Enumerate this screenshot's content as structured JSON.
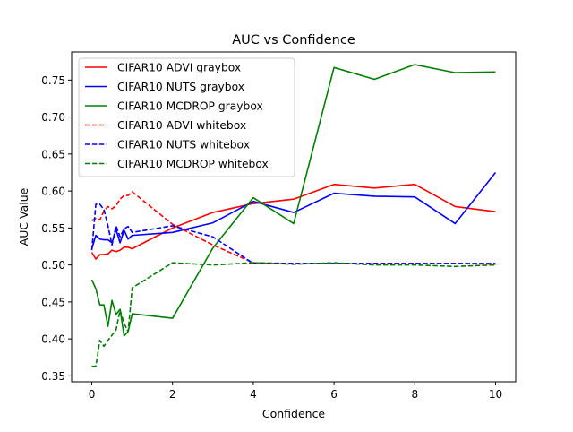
{
  "chart_data": {
    "type": "line",
    "title": "AUC vs Confidence",
    "xlabel": "Confidence",
    "ylabel": "AUC Value",
    "xlim": [
      -0.5,
      10.5
    ],
    "ylim": [
      0.342,
      0.788
    ],
    "xticks": [
      0,
      2,
      4,
      6,
      8,
      10
    ],
    "xtick_labels": [
      "0",
      "2",
      "4",
      "6",
      "8",
      "10"
    ],
    "yticks": [
      0.35,
      0.4,
      0.45,
      0.5,
      0.55,
      0.6,
      0.65,
      0.7,
      0.75
    ],
    "ytick_labels": [
      "0.35",
      "0.40",
      "0.45",
      "0.50",
      "0.55",
      "0.60",
      "0.65",
      "0.70",
      "0.75"
    ],
    "grid": false,
    "legend_position": "top-left",
    "series": [
      {
        "name": "CIFAR10 ADVI graybox",
        "color": "#ff0000",
        "dash": "solid",
        "points": [
          [
            0,
            0.517
          ],
          [
            0.1,
            0.508
          ],
          [
            0.2,
            0.514
          ],
          [
            0.3,
            0.514
          ],
          [
            0.4,
            0.515
          ],
          [
            0.5,
            0.52
          ],
          [
            0.6,
            0.518
          ],
          [
            0.7,
            0.52
          ],
          [
            0.8,
            0.524
          ],
          [
            0.9,
            0.524
          ],
          [
            1,
            0.522
          ],
          [
            2,
            0.55
          ],
          [
            3,
            0.571
          ],
          [
            4,
            0.583
          ],
          [
            5,
            0.589
          ],
          [
            6,
            0.609
          ],
          [
            7,
            0.604
          ],
          [
            8,
            0.609
          ],
          [
            9,
            0.579
          ],
          [
            10,
            0.572
          ]
        ]
      },
      {
        "name": "CIFAR10 NUTS graybox",
        "color": "#0000ff",
        "dash": "solid",
        "points": [
          [
            0,
            0.522
          ],
          [
            0.1,
            0.54
          ],
          [
            0.2,
            0.535
          ],
          [
            0.3,
            0.534
          ],
          [
            0.4,
            0.534
          ],
          [
            0.5,
            0.53
          ],
          [
            0.6,
            0.548
          ],
          [
            0.7,
            0.53
          ],
          [
            0.8,
            0.547
          ],
          [
            0.9,
            0.535
          ],
          [
            1,
            0.54
          ],
          [
            2,
            0.544
          ],
          [
            3,
            0.557
          ],
          [
            4,
            0.586
          ],
          [
            5,
            0.571
          ],
          [
            6,
            0.597
          ],
          [
            7,
            0.593
          ],
          [
            8,
            0.592
          ],
          [
            9,
            0.556
          ],
          [
            10,
            0.625
          ]
        ]
      },
      {
        "name": "CIFAR10 MCDROP graybox",
        "color": "#008000",
        "dash": "solid",
        "points": [
          [
            0,
            0.48
          ],
          [
            0.1,
            0.468
          ],
          [
            0.2,
            0.446
          ],
          [
            0.3,
            0.446
          ],
          [
            0.4,
            0.417
          ],
          [
            0.5,
            0.452
          ],
          [
            0.6,
            0.433
          ],
          [
            0.7,
            0.44
          ],
          [
            0.8,
            0.404
          ],
          [
            0.9,
            0.41
          ],
          [
            1,
            0.434
          ],
          [
            2,
            0.428
          ],
          [
            3,
            0.523
          ],
          [
            4,
            0.591
          ],
          [
            5,
            0.556
          ],
          [
            6,
            0.767
          ],
          [
            7,
            0.751
          ],
          [
            8,
            0.771
          ],
          [
            9,
            0.76
          ],
          [
            10,
            0.761
          ]
        ]
      },
      {
        "name": "CIFAR10 ADVI whitebox",
        "color": "#ff0000",
        "dash": "dashed",
        "points": [
          [
            0,
            0.56
          ],
          [
            0.1,
            0.563
          ],
          [
            0.2,
            0.561
          ],
          [
            0.3,
            0.573
          ],
          [
            0.4,
            0.579
          ],
          [
            0.5,
            0.576
          ],
          [
            0.6,
            0.58
          ],
          [
            0.7,
            0.589
          ],
          [
            0.8,
            0.594
          ],
          [
            0.9,
            0.594
          ],
          [
            1,
            0.599
          ],
          [
            2,
            0.555
          ],
          [
            3,
            0.527
          ],
          [
            4,
            0.503
          ],
          [
            5,
            0.502
          ],
          [
            6,
            0.502
          ],
          [
            7,
            0.502
          ],
          [
            8,
            0.502
          ],
          [
            9,
            0.502
          ],
          [
            10,
            0.501
          ]
        ]
      },
      {
        "name": "CIFAR10 NUTS whitebox",
        "color": "#0000ff",
        "dash": "dashed",
        "points": [
          [
            0,
            0.52
          ],
          [
            0.1,
            0.582
          ],
          [
            0.2,
            0.582
          ],
          [
            0.3,
            0.575
          ],
          [
            0.4,
            0.553
          ],
          [
            0.5,
            0.527
          ],
          [
            0.6,
            0.553
          ],
          [
            0.7,
            0.538
          ],
          [
            0.8,
            0.549
          ],
          [
            0.9,
            0.552
          ],
          [
            1,
            0.544
          ],
          [
            2,
            0.553
          ],
          [
            3,
            0.538
          ],
          [
            4,
            0.502
          ],
          [
            5,
            0.502
          ],
          [
            6,
            0.502
          ],
          [
            7,
            0.502
          ],
          [
            8,
            0.502
          ],
          [
            9,
            0.502
          ],
          [
            10,
            0.502
          ]
        ]
      },
      {
        "name": "CIFAR10 MCDROP whitebox",
        "color": "#008000",
        "dash": "dashed",
        "points": [
          [
            0,
            0.363
          ],
          [
            0.1,
            0.363
          ],
          [
            0.2,
            0.398
          ],
          [
            0.3,
            0.39
          ],
          [
            0.4,
            0.398
          ],
          [
            0.5,
            0.405
          ],
          [
            0.6,
            0.412
          ],
          [
            0.7,
            0.439
          ],
          [
            0.8,
            0.421
          ],
          [
            0.9,
            0.41
          ],
          [
            1,
            0.469
          ],
          [
            2,
            0.503
          ],
          [
            3,
            0.5
          ],
          [
            4,
            0.503
          ],
          [
            5,
            0.501
          ],
          [
            6,
            0.503
          ],
          [
            7,
            0.5
          ],
          [
            8,
            0.5
          ],
          [
            9,
            0.498
          ],
          [
            10,
            0.5
          ]
        ]
      }
    ]
  }
}
